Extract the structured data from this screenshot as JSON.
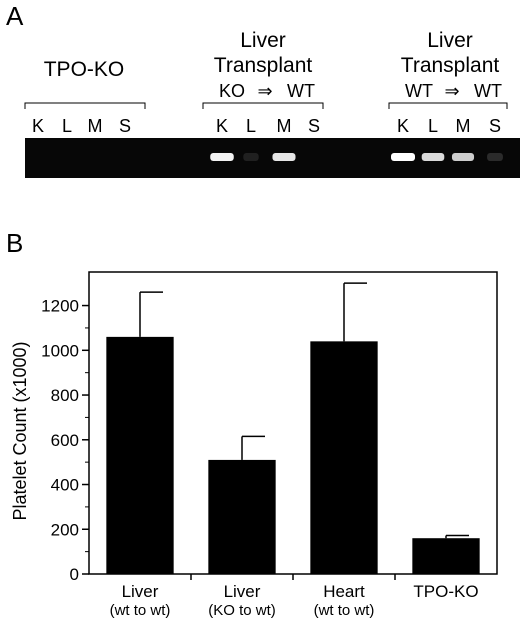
{
  "panel_a": {
    "letter": "A",
    "groups": [
      {
        "title_lines": [
          "TPO-KO"
        ],
        "subtitle": {
          "left": "",
          "arrow": "",
          "right": ""
        }
      },
      {
        "title_lines": [
          "Liver",
          "Transplant"
        ],
        "subtitle": {
          "left": "KO",
          "arrow": "⇒",
          "right": "WT"
        }
      },
      {
        "title_lines": [
          "Liver",
          "Transplant"
        ],
        "subtitle": {
          "left": "WT",
          "arrow": "⇒",
          "right": "WT"
        }
      }
    ],
    "lane_labels": [
      "K",
      "L",
      "M",
      "S"
    ],
    "band_intensity": [
      [
        0,
        0,
        0,
        0
      ],
      [
        0.95,
        0.1,
        0.9,
        0
      ],
      [
        1.0,
        0.85,
        0.8,
        0.15
      ]
    ]
  },
  "panel_b": {
    "letter": "B"
  },
  "chart_data": {
    "type": "bar",
    "categories": [
      [
        "Liver",
        "(wt to wt)"
      ],
      [
        "Liver",
        "(KO to wt)"
      ],
      [
        "Heart",
        "(wt to wt)"
      ],
      [
        "TPO-KO"
      ]
    ],
    "values": [
      1060,
      510,
      1040,
      160
    ],
    "errors": [
      200,
      105,
      260,
      12
    ],
    "ylabel": "Platelet Count (x1000)",
    "xlabel": "",
    "ylim": [
      0,
      1350
    ],
    "yticks": [
      0,
      200,
      400,
      600,
      800,
      1000,
      1200
    ],
    "ytick_labels": [
      "0",
      "200",
      "400",
      "600",
      "800",
      "1000",
      "1200"
    ],
    "grid": false,
    "bar_color": "#000000"
  }
}
